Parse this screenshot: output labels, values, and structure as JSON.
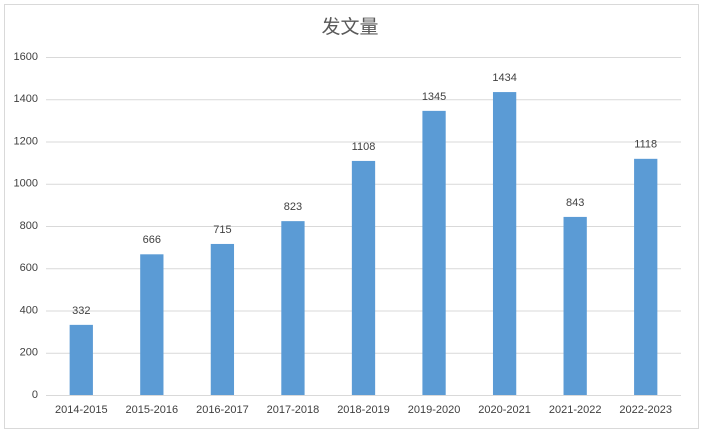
{
  "chart_data": {
    "type": "bar",
    "title": "发文量",
    "categories": [
      "2014-2015",
      "2015-2016",
      "2016-2017",
      "2017-2018",
      "2018-2019",
      "2019-2020",
      "2020-2021",
      "2021-2022",
      "2022-2023"
    ],
    "values": [
      332,
      666,
      715,
      823,
      1108,
      1345,
      1434,
      843,
      1118
    ],
    "color": "#5b9bd5",
    "ylim": [
      0,
      1600
    ],
    "yticks": [
      0,
      200,
      400,
      600,
      800,
      1000,
      1200,
      1400,
      1600
    ],
    "grid": true
  }
}
